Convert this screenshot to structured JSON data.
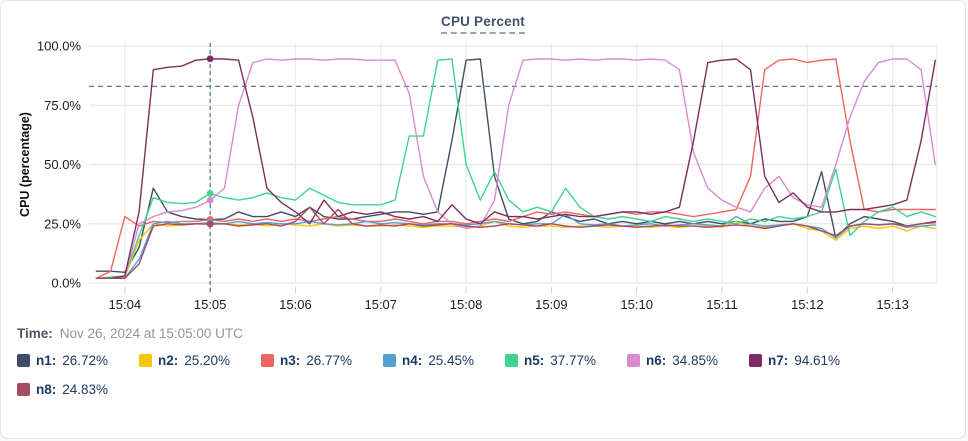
{
  "title": "CPU Percent",
  "time_row": {
    "label": "Time:",
    "value": "Nov 26, 2024 at 15:05:00 UTC"
  },
  "legend": {
    "items": [
      {
        "label": "n1:",
        "value": "26.72%",
        "color": "#3f4e66"
      },
      {
        "label": "n2:",
        "value": "25.20%",
        "color": "#f5c60a"
      },
      {
        "label": "n3:",
        "value": "26.77%",
        "color": "#ec665f"
      },
      {
        "label": "n4:",
        "value": "25.45%",
        "color": "#55a0d3"
      },
      {
        "label": "n5:",
        "value": "37.77%",
        "color": "#41d392"
      },
      {
        "label": "n6:",
        "value": "34.85%",
        "color": "#da8bd0"
      },
      {
        "label": "n7:",
        "value": "94.61%",
        "color": "#7e2d62"
      },
      {
        "label": "n8:",
        "value": "24.83%",
        "color": "#a84a64"
      }
    ]
  },
  "chart_data": {
    "type": "line",
    "title": "CPU Percent",
    "ylabel": "CPU (percentage)",
    "ylim": [
      0,
      100
    ],
    "grid": true,
    "legend_position": "bottom",
    "x_start_min": 3.6667,
    "x_step_min": 0.16667,
    "x_range": [
      3.58,
      13.52
    ],
    "y_ticks": [
      {
        "v": 0,
        "label": "0.0%"
      },
      {
        "v": 25,
        "label": "25.0%"
      },
      {
        "v": 50,
        "label": "50.0%"
      },
      {
        "v": 75,
        "label": "75.0%"
      },
      {
        "v": 100,
        "label": "100.0%"
      }
    ],
    "x_ticks": [
      {
        "v": 4,
        "label": "15:04"
      },
      {
        "v": 5,
        "label": "15:05"
      },
      {
        "v": 6,
        "label": "15:06"
      },
      {
        "v": 7,
        "label": "15:07"
      },
      {
        "v": 8,
        "label": "15:08"
      },
      {
        "v": 9,
        "label": "15:09"
      },
      {
        "v": 10,
        "label": "15:10"
      },
      {
        "v": 11,
        "label": "15:11"
      },
      {
        "v": 12,
        "label": "15:12"
      },
      {
        "v": 13,
        "label": "15:13"
      }
    ],
    "threshold_pct": 83,
    "crosshair": {
      "t_min": 5,
      "index": 8,
      "time_label": "15:05"
    },
    "series": [
      {
        "name": "n1",
        "color": "#3f4e66",
        "value_at_crosshair": 26.72,
        "values": [
          5,
          5,
          4.5,
          15,
          40,
          30,
          28,
          27,
          26.72,
          27,
          30,
          28,
          28,
          30,
          28,
          32,
          28,
          27,
          27,
          28,
          29,
          30,
          30,
          29,
          30,
          60,
          94,
          94.5,
          45,
          27,
          25,
          26,
          30,
          28,
          26,
          27,
          25,
          26,
          25,
          26,
          25,
          26,
          25,
          26,
          25,
          26,
          25,
          27,
          26,
          26,
          28,
          47,
          19,
          25,
          28,
          27,
          26,
          24,
          25,
          26
        ]
      },
      {
        "name": "n2",
        "color": "#f5c60a",
        "value_at_crosshair": 25.2,
        "values": [
          2,
          2,
          2.5,
          18,
          25,
          24,
          24.5,
          25,
          25.2,
          25,
          24.5,
          25,
          24,
          25,
          24.5,
          24,
          25,
          24,
          24.5,
          24,
          24,
          24.5,
          24,
          23.5,
          24,
          24,
          23.5,
          24,
          26,
          24,
          23.5,
          24,
          24,
          23.5,
          24,
          24,
          23.5,
          24,
          24,
          23.5,
          24,
          23.5,
          24,
          24,
          23.5,
          26,
          24,
          23.5,
          24,
          25,
          23,
          22,
          18,
          23,
          24,
          23,
          24,
          22,
          24,
          23
        ]
      },
      {
        "name": "n3",
        "color": "#ec665f",
        "value_at_crosshair": 26.77,
        "values": [
          2,
          5,
          28,
          24,
          26,
          25.5,
          26,
          26,
          26.77,
          26,
          27,
          26,
          27,
          26,
          27,
          26,
          27,
          28,
          27,
          26,
          26,
          27,
          26,
          25,
          26,
          26,
          25,
          26,
          27,
          26,
          28,
          30,
          29,
          30,
          29,
          28,
          29,
          30,
          29,
          30,
          30,
          29,
          28,
          29,
          30,
          31,
          45,
          90,
          94,
          94.5,
          93,
          94,
          94.5,
          60,
          31,
          30,
          31,
          31,
          31,
          31
        ]
      },
      {
        "name": "n4",
        "color": "#55a0d3",
        "value_at_crosshair": 25.45,
        "values": [
          2,
          2,
          2,
          10,
          25,
          26,
          25,
          25,
          25.45,
          25,
          26,
          25,
          25.5,
          25,
          25,
          26,
          25,
          24.5,
          25,
          26,
          25,
          25.5,
          25,
          24.5,
          25,
          25,
          24.5,
          25,
          26,
          25,
          24.5,
          25,
          25,
          29,
          25,
          24.5,
          25,
          24,
          24.5,
          25,
          24,
          24.5,
          25,
          24.5,
          24,
          28,
          25,
          24,
          24.5,
          25,
          24,
          23,
          19,
          24,
          25,
          24.5,
          25,
          23.5,
          24,
          24.5
        ]
      },
      {
        "name": "n5",
        "color": "#41d392",
        "value_at_crosshair": 37.77,
        "values": [
          2,
          2.5,
          3,
          20,
          36,
          34,
          33.5,
          34,
          37.77,
          36,
          35,
          36,
          38,
          36,
          35,
          40,
          37,
          34,
          33,
          33,
          33,
          35,
          62,
          62,
          94,
          94.5,
          50,
          35,
          47,
          35,
          30,
          32,
          30,
          40,
          32,
          28,
          27,
          28,
          27,
          26,
          28,
          27,
          26,
          27,
          26,
          25,
          27,
          26,
          28,
          27,
          28,
          30,
          48,
          20,
          26,
          30,
          32,
          28,
          30,
          28
        ]
      },
      {
        "name": "n6",
        "color": "#da8bd0",
        "value_at_crosshair": 34.85,
        "values": [
          2,
          2,
          2.5,
          25,
          28,
          30,
          30.5,
          32,
          34.85,
          40,
          75,
          93,
          94.5,
          94,
          94.5,
          94.5,
          94,
          94.5,
          94.5,
          94,
          94,
          94,
          80,
          45,
          30,
          25,
          23,
          24,
          35,
          75,
          94,
          94.5,
          94.5,
          94,
          94.5,
          94,
          94.5,
          94.5,
          94,
          94.5,
          94,
          90,
          55,
          40,
          35,
          32,
          30,
          40,
          45,
          36,
          33,
          32,
          50,
          70,
          85,
          93,
          94.5,
          94.5,
          90,
          50
        ]
      },
      {
        "name": "n7",
        "color": "#7e2d62",
        "value_at_crosshair": 94.61,
        "values": [
          2,
          2,
          3,
          30,
          90,
          91,
          91.5,
          94,
          94.61,
          94.5,
          94,
          70,
          40,
          34,
          30,
          25,
          35,
          28,
          30,
          29,
          30,
          28,
          27,
          28,
          26,
          33,
          27,
          25,
          30,
          28,
          28,
          27,
          28,
          29,
          28,
          28,
          29,
          30,
          30,
          29,
          30,
          32,
          60,
          93,
          94,
          94.5,
          90,
          45,
          34,
          38,
          32,
          30,
          30,
          31,
          31,
          32,
          33,
          35,
          60,
          94
        ]
      },
      {
        "name": "n8",
        "color": "#a84a64",
        "value_at_crosshair": 24.83,
        "values": [
          2,
          2,
          2,
          8,
          24,
          25,
          24.5,
          25,
          24.83,
          25,
          24,
          24.5,
          25,
          24,
          26,
          32,
          25,
          31,
          25,
          24,
          24.5,
          24,
          25,
          24,
          24.5,
          25,
          24,
          23.5,
          24,
          25,
          24.5,
          24,
          25,
          24,
          23.5,
          24,
          24.5,
          24,
          23.5,
          24,
          24.5,
          24,
          24,
          23.5,
          24,
          24.5,
          24,
          23,
          24,
          25,
          24,
          22,
          20,
          24,
          25,
          24.5,
          25,
          24,
          25,
          25.5
        ]
      }
    ]
  }
}
